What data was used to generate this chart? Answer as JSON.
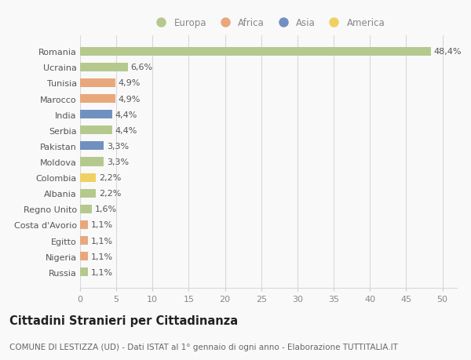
{
  "countries": [
    "Romania",
    "Ucraina",
    "Tunisia",
    "Marocco",
    "India",
    "Serbia",
    "Pakistan",
    "Moldova",
    "Colombia",
    "Albania",
    "Regno Unito",
    "Costa d'Avorio",
    "Egitto",
    "Nigeria",
    "Russia"
  ],
  "values": [
    48.4,
    6.6,
    4.9,
    4.9,
    4.4,
    4.4,
    3.3,
    3.3,
    2.2,
    2.2,
    1.6,
    1.1,
    1.1,
    1.1,
    1.1
  ],
  "labels": [
    "48,4%",
    "6,6%",
    "4,9%",
    "4,9%",
    "4,4%",
    "4,4%",
    "3,3%",
    "3,3%",
    "2,2%",
    "2,2%",
    "1,6%",
    "1,1%",
    "1,1%",
    "1,1%",
    "1,1%"
  ],
  "colors": [
    "#b5c98e",
    "#b5c98e",
    "#e8a87c",
    "#e8a87c",
    "#7090c0",
    "#b5c98e",
    "#7090c0",
    "#b5c98e",
    "#f0d060",
    "#b5c98e",
    "#b5c98e",
    "#e8a87c",
    "#e8a87c",
    "#e8a87c",
    "#b5c98e"
  ],
  "legend": [
    {
      "label": "Europa",
      "color": "#b5c98e"
    },
    {
      "label": "Africa",
      "color": "#e8a87c"
    },
    {
      "label": "Asia",
      "color": "#7090c0"
    },
    {
      "label": "America",
      "color": "#f0d060"
    }
  ],
  "title": "Cittadini Stranieri per Cittadinanza",
  "subtitle": "COMUNE DI LESTIZZA (UD) - Dati ISTAT al 1° gennaio di ogni anno - Elaborazione TUTTITALIA.IT",
  "xlim": [
    0,
    52
  ],
  "xticks": [
    0,
    5,
    10,
    15,
    20,
    25,
    30,
    35,
    40,
    45,
    50
  ],
  "background_color": "#f9f9f9",
  "grid_color": "#d8d8d8",
  "bar_height": 0.55,
  "label_fontsize": 8,
  "tick_fontsize": 8,
  "title_fontsize": 10.5,
  "subtitle_fontsize": 7.5
}
